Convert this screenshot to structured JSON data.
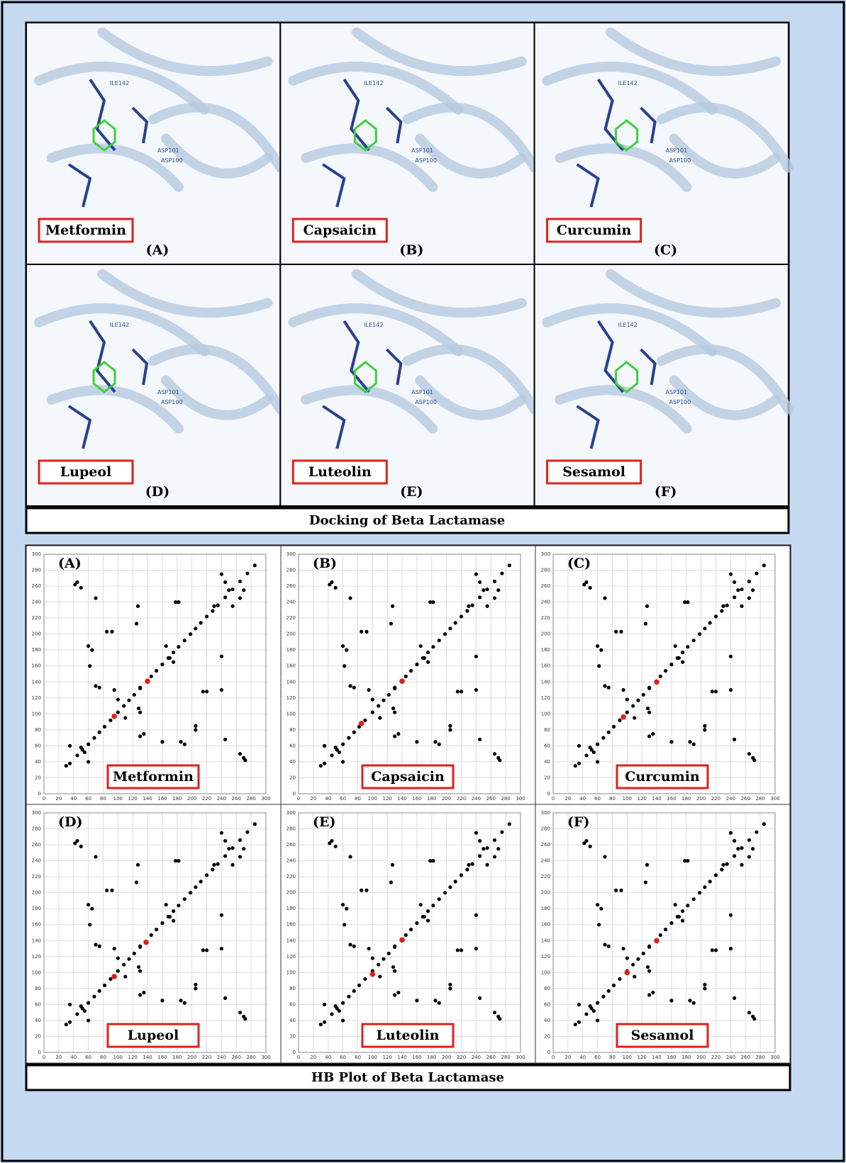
{
  "docking": {
    "panels": [
      {
        "ligand": "Metformin",
        "label": "(A)"
      },
      {
        "ligand": "Capsaicin",
        "label": "(B)"
      },
      {
        "ligand": "Curcumin",
        "label": "(C)"
      },
      {
        "ligand": "Lupeol",
        "label": "(D)"
      },
      {
        "ligand": "Luteolin",
        "label": "(E)"
      },
      {
        "ligand": "Sesamol",
        "label": "(F)"
      }
    ],
    "residues": [
      "ILE142",
      "ASP101",
      "ASP100"
    ],
    "caption": "Docking of Beta Lactamase"
  },
  "hb_plots": {
    "xlim": [
      0,
      300
    ],
    "ylim": [
      0,
      300
    ],
    "xticks": [
      0,
      20,
      40,
      60,
      80,
      100,
      120,
      140,
      160,
      180,
      200,
      220,
      240,
      260,
      280,
      300
    ],
    "yticks": [
      0,
      20,
      40,
      60,
      80,
      100,
      120,
      140,
      160,
      180,
      200,
      220,
      240,
      260,
      280,
      300
    ],
    "points": {
      "x": [
        30,
        35,
        45,
        52,
        60,
        68,
        75,
        82,
        90,
        100,
        108,
        115,
        122,
        130,
        145,
        152,
        160,
        168,
        175,
        182,
        190,
        198,
        205,
        212,
        220,
        228,
        235,
        245,
        255,
        265,
        275,
        285,
        45,
        42,
        50,
        70,
        60,
        65,
        62,
        70,
        75,
        85,
        92,
        125,
        127,
        130,
        128,
        130,
        135,
        130,
        160,
        178,
        182,
        185,
        190,
        205,
        205,
        215,
        220,
        240,
        245,
        240,
        265,
        270,
        272,
        95,
        100,
        110,
        55,
        50,
        35,
        60,
        165,
        170,
        175,
        230,
        250,
        265,
        270,
        240,
        245,
        255
      ],
      "y": [
        35,
        38,
        48,
        55,
        62,
        70,
        77,
        84,
        92,
        102,
        110,
        117,
        124,
        132,
        147,
        154,
        162,
        170,
        177,
        184,
        192,
        200,
        207,
        214,
        222,
        229,
        236,
        246,
        256,
        266,
        276,
        286,
        265,
        262,
        258,
        245,
        185,
        180,
        160,
        135,
        133,
        203,
        203,
        213,
        235,
        133,
        107,
        102,
        75,
        72,
        65,
        240,
        240,
        65,
        62,
        85,
        80,
        128,
        128,
        172,
        68,
        130,
        50,
        45,
        42,
        130,
        118,
        95,
        52,
        58,
        60,
        40,
        185,
        170,
        165,
        235,
        255,
        245,
        255,
        275,
        265,
        235
      ]
    },
    "panels": [
      {
        "ligand": "Metformin",
        "label": "(A)",
        "highlight": {
          "x": [
            95,
            140
          ],
          "y": [
            97,
            141
          ]
        }
      },
      {
        "ligand": "Capsaicin",
        "label": "(B)",
        "highlight": {
          "x": [
            85,
            140
          ],
          "y": [
            88,
            141
          ]
        }
      },
      {
        "ligand": "Curcumin",
        "label": "(C)",
        "highlight": {
          "x": [
            95,
            140
          ],
          "y": [
            96,
            140
          ]
        }
      },
      {
        "ligand": "Lupeol",
        "label": "(D)",
        "highlight": {
          "x": [
            95,
            138
          ],
          "y": [
            95,
            138
          ]
        }
      },
      {
        "ligand": "Luteolin",
        "label": "(E)",
        "highlight": {
          "x": [
            100,
            140
          ],
          "y": [
            98,
            141
          ]
        }
      },
      {
        "ligand": "Sesamol",
        "label": "(F)",
        "highlight": {
          "x": [
            100,
            140
          ],
          "y": [
            100,
            140
          ]
        }
      }
    ],
    "caption": "HB Plot of Beta Lactamase"
  }
}
